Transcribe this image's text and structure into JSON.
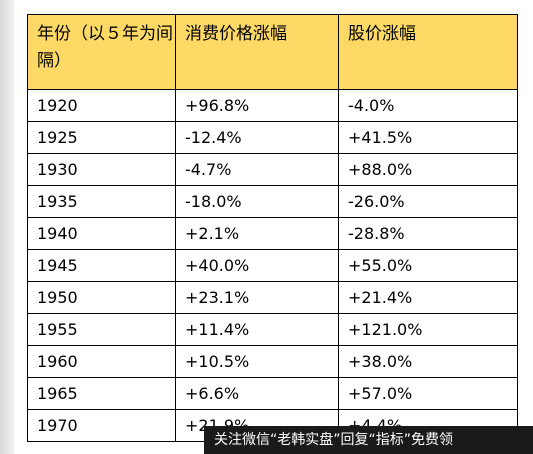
{
  "table": {
    "headers": [
      "年份（以５年为间隔）",
      "消费价格涨幅",
      "股价涨幅"
    ],
    "rows": [
      [
        "1920",
        "+96.8%",
        "-4.0%"
      ],
      [
        "1925",
        "-12.4%",
        "+41.5%"
      ],
      [
        "1930",
        "-4.7%",
        "+88.0%"
      ],
      [
        "1935",
        "-18.0%",
        "-26.0%"
      ],
      [
        "1940",
        "+2.1%",
        "-28.8%"
      ],
      [
        "1945",
        "+40.0%",
        "+55.0%"
      ],
      [
        "1950",
        "+23.1%",
        "+21.4%"
      ],
      [
        "1955",
        "+11.4%",
        "+121.0%"
      ],
      [
        "1960",
        "+10.5%",
        "+38.0%"
      ],
      [
        "1965",
        "+6.6%",
        "+57.0%"
      ],
      [
        "1970",
        "+21.9%",
        "+4.4%"
      ]
    ]
  },
  "watermark": {
    "text": "关注微信“老韩实盘”回复“指标”免费领"
  }
}
